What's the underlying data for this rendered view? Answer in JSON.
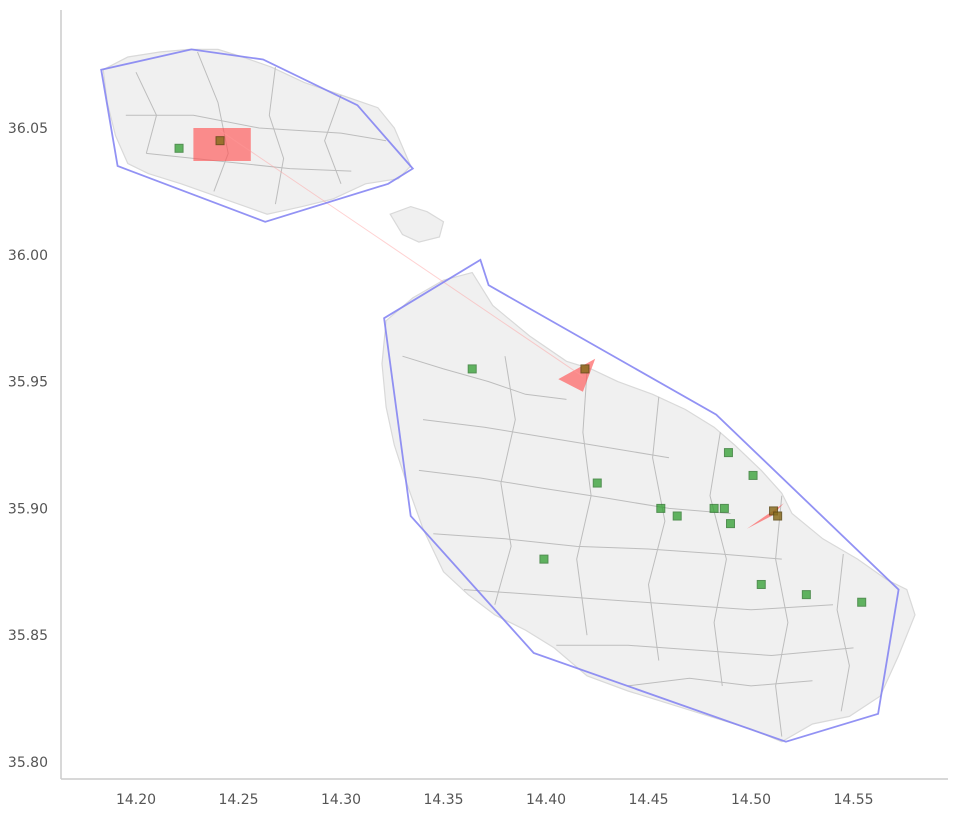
{
  "chart_data": {
    "type": "scatter",
    "title": "",
    "xlabel": "",
    "ylabel": "",
    "xlim": [
      14.16,
      14.595
    ],
    "ylim": [
      35.795,
      36.093
    ],
    "x_ticks": [
      "14.20",
      "14.25",
      "14.30",
      "14.35",
      "14.40",
      "14.45",
      "14.50",
      "14.55"
    ],
    "y_ticks": [
      "35.80",
      "35.85",
      "35.90",
      "35.95",
      "36.00",
      "36.05"
    ],
    "colors": {
      "land": "#f0f0f0",
      "border": "#bdbdbd",
      "hull": "#7f7ff2",
      "hotspot": "#ff5555",
      "point": "#2f9e2f",
      "overlap_point": "#8a6d1e"
    },
    "gozo_outline": [
      [
        14.184,
        36.073
      ],
      [
        14.196,
        36.078
      ],
      [
        14.212,
        36.08
      ],
      [
        14.226,
        36.081
      ],
      [
        14.24,
        36.081
      ],
      [
        14.252,
        36.078
      ],
      [
        14.266,
        36.074
      ],
      [
        14.282,
        36.068
      ],
      [
        14.3,
        36.063
      ],
      [
        14.318,
        36.058
      ],
      [
        14.326,
        36.05
      ],
      [
        14.334,
        36.035
      ],
      [
        14.328,
        36.03
      ],
      [
        14.312,
        36.028
      ],
      [
        14.296,
        36.022
      ],
      [
        14.281,
        36.019
      ],
      [
        14.264,
        36.016
      ],
      [
        14.25,
        36.02
      ],
      [
        14.236,
        36.024
      ],
      [
        14.222,
        36.028
      ],
      [
        14.206,
        36.032
      ],
      [
        14.196,
        36.036
      ],
      [
        14.19,
        36.047
      ],
      [
        14.186,
        36.06
      ]
    ],
    "comino_outline": [
      [
        14.324,
        36.016
      ],
      [
        14.334,
        36.019
      ],
      [
        14.342,
        36.017
      ],
      [
        14.35,
        36.013
      ],
      [
        14.348,
        36.007
      ],
      [
        14.338,
        36.005
      ],
      [
        14.33,
        36.008
      ]
    ],
    "malta_outline": [
      [
        14.322,
        35.974
      ],
      [
        14.335,
        35.983
      ],
      [
        14.35,
        35.99
      ],
      [
        14.364,
        35.993
      ],
      [
        14.374,
        35.98
      ],
      [
        14.392,
        35.968
      ],
      [
        14.41,
        35.958
      ],
      [
        14.422,
        35.955
      ],
      [
        14.435,
        35.95
      ],
      [
        14.452,
        35.945
      ],
      [
        14.468,
        35.939
      ],
      [
        14.482,
        35.932
      ],
      [
        14.492,
        35.925
      ],
      [
        14.505,
        35.915
      ],
      [
        14.515,
        35.906
      ],
      [
        14.52,
        35.898
      ],
      [
        14.535,
        35.888
      ],
      [
        14.552,
        35.88
      ],
      [
        14.566,
        35.872
      ],
      [
        14.576,
        35.868
      ],
      [
        14.58,
        35.858
      ],
      [
        14.572,
        35.842
      ],
      [
        14.563,
        35.826
      ],
      [
        14.548,
        35.818
      ],
      [
        14.53,
        35.815
      ],
      [
        14.515,
        35.808
      ],
      [
        14.5,
        35.813
      ],
      [
        14.48,
        35.818
      ],
      [
        14.46,
        35.823
      ],
      [
        14.44,
        35.828
      ],
      [
        14.42,
        35.834
      ],
      [
        14.404,
        35.845
      ],
      [
        14.39,
        35.852
      ],
      [
        14.375,
        35.858
      ],
      [
        14.362,
        35.866
      ],
      [
        14.35,
        35.875
      ],
      [
        14.34,
        35.892
      ],
      [
        14.332,
        35.91
      ],
      [
        14.326,
        35.925
      ],
      [
        14.322,
        35.94
      ],
      [
        14.32,
        35.957
      ]
    ],
    "districts": [
      [
        [
          14.2,
          36.072
        ],
        [
          14.21,
          36.055
        ],
        [
          14.205,
          36.04
        ]
      ],
      [
        [
          14.23,
          36.08
        ],
        [
          14.24,
          36.06
        ],
        [
          14.245,
          36.04
        ],
        [
          14.238,
          36.025
        ]
      ],
      [
        [
          14.268,
          36.074
        ],
        [
          14.265,
          36.055
        ],
        [
          14.272,
          36.038
        ],
        [
          14.268,
          36.02
        ]
      ],
      [
        [
          14.3,
          36.063
        ],
        [
          14.292,
          36.045
        ],
        [
          14.3,
          36.028
        ]
      ],
      [
        [
          14.195,
          36.055
        ],
        [
          14.228,
          36.055
        ],
        [
          14.26,
          36.05
        ],
        [
          14.3,
          36.048
        ],
        [
          14.322,
          36.045
        ]
      ],
      [
        [
          14.205,
          36.04
        ],
        [
          14.24,
          36.037
        ],
        [
          14.275,
          36.034
        ],
        [
          14.305,
          36.033
        ]
      ],
      [
        [
          14.33,
          35.96
        ],
        [
          14.35,
          35.955
        ],
        [
          14.372,
          35.95
        ],
        [
          14.39,
          35.945
        ],
        [
          14.41,
          35.943
        ]
      ],
      [
        [
          14.34,
          35.935
        ],
        [
          14.37,
          35.932
        ],
        [
          14.4,
          35.928
        ],
        [
          14.43,
          35.924
        ],
        [
          14.46,
          35.92
        ]
      ],
      [
        [
          14.338,
          35.915
        ],
        [
          14.368,
          35.912
        ],
        [
          14.398,
          35.908
        ],
        [
          14.43,
          35.904
        ],
        [
          14.46,
          35.9
        ],
        [
          14.49,
          35.898
        ]
      ],
      [
        [
          14.345,
          35.89
        ],
        [
          14.38,
          35.888
        ],
        [
          14.415,
          35.885
        ],
        [
          14.45,
          35.884
        ],
        [
          14.485,
          35.882
        ],
        [
          14.515,
          35.88
        ]
      ],
      [
        [
          14.36,
          35.868
        ],
        [
          14.395,
          35.866
        ],
        [
          14.43,
          35.864
        ],
        [
          14.465,
          35.862
        ],
        [
          14.5,
          35.86
        ],
        [
          14.54,
          35.862
        ]
      ],
      [
        [
          14.405,
          35.846
        ],
        [
          14.44,
          35.846
        ],
        [
          14.475,
          35.844
        ],
        [
          14.51,
          35.842
        ],
        [
          14.55,
          35.845
        ]
      ],
      [
        [
          14.44,
          35.83
        ],
        [
          14.47,
          35.833
        ],
        [
          14.5,
          35.83
        ],
        [
          14.53,
          35.832
        ]
      ],
      [
        [
          14.38,
          35.96
        ],
        [
          14.385,
          35.935
        ],
        [
          14.378,
          35.91
        ],
        [
          14.383,
          35.885
        ],
        [
          14.375,
          35.862
        ]
      ],
      [
        [
          14.42,
          35.954
        ],
        [
          14.418,
          35.93
        ],
        [
          14.422,
          35.905
        ],
        [
          14.415,
          35.88
        ],
        [
          14.42,
          35.85
        ]
      ],
      [
        [
          14.455,
          35.944
        ],
        [
          14.452,
          35.92
        ],
        [
          14.458,
          35.895
        ],
        [
          14.45,
          35.87
        ],
        [
          14.455,
          35.84
        ]
      ],
      [
        [
          14.485,
          35.93
        ],
        [
          14.48,
          35.905
        ],
        [
          14.488,
          35.88
        ],
        [
          14.482,
          35.855
        ],
        [
          14.486,
          35.83
        ]
      ],
      [
        [
          14.515,
          35.905
        ],
        [
          14.512,
          35.88
        ],
        [
          14.518,
          35.855
        ],
        [
          14.512,
          35.83
        ],
        [
          14.515,
          35.81
        ]
      ],
      [
        [
          14.545,
          35.882
        ],
        [
          14.542,
          35.86
        ],
        [
          14.548,
          35.838
        ],
        [
          14.544,
          35.82
        ]
      ]
    ],
    "hulls": [
      [
        [
          14.183,
          36.073
        ],
        [
          14.227,
          36.081
        ],
        [
          14.262,
          36.077
        ],
        [
          14.308,
          36.059
        ],
        [
          14.335,
          36.034
        ],
        [
          14.323,
          36.028
        ],
        [
          14.263,
          36.013
        ],
        [
          14.191,
          36.035
        ]
      ],
      [
        [
          14.321,
          35.975
        ],
        [
          14.368,
          35.998
        ],
        [
          14.372,
          35.988
        ],
        [
          14.483,
          35.937
        ],
        [
          14.572,
          35.868
        ],
        [
          14.562,
          35.819
        ],
        [
          14.517,
          35.808
        ],
        [
          14.394,
          35.843
        ],
        [
          14.334,
          35.897
        ]
      ]
    ],
    "hotspots": [
      [
        [
          14.228,
          36.05
        ],
        [
          14.256,
          36.05
        ],
        [
          14.256,
          36.037
        ],
        [
          14.228,
          36.037
        ]
      ],
      [
        [
          14.406,
          35.951
        ],
        [
          14.424,
          35.959
        ],
        [
          14.418,
          35.946
        ]
      ],
      [
        [
          14.498,
          35.892
        ],
        [
          14.516,
          35.902
        ],
        [
          14.51,
          35.897
        ]
      ]
    ],
    "links": [
      [
        [
          14.241,
          36.049
        ],
        [
          14.418,
          35.952
        ]
      ]
    ],
    "points": [
      {
        "x": 14.221,
        "y": 36.042
      },
      {
        "x": 14.364,
        "y": 35.955
      },
      {
        "x": 14.425,
        "y": 35.91
      },
      {
        "x": 14.456,
        "y": 35.9
      },
      {
        "x": 14.464,
        "y": 35.897
      },
      {
        "x": 14.399,
        "y": 35.88
      },
      {
        "x": 14.489,
        "y": 35.922
      },
      {
        "x": 14.501,
        "y": 35.913
      },
      {
        "x": 14.482,
        "y": 35.9
      },
      {
        "x": 14.487,
        "y": 35.9
      },
      {
        "x": 14.49,
        "y": 35.894
      },
      {
        "x": 14.505,
        "y": 35.87
      },
      {
        "x": 14.527,
        "y": 35.866
      },
      {
        "x": 14.554,
        "y": 35.863
      }
    ],
    "overlap_points": [
      {
        "x": 14.241,
        "y": 36.045
      },
      {
        "x": 14.419,
        "y": 35.955
      },
      {
        "x": 14.511,
        "y": 35.899
      },
      {
        "x": 14.513,
        "y": 35.897
      }
    ]
  }
}
